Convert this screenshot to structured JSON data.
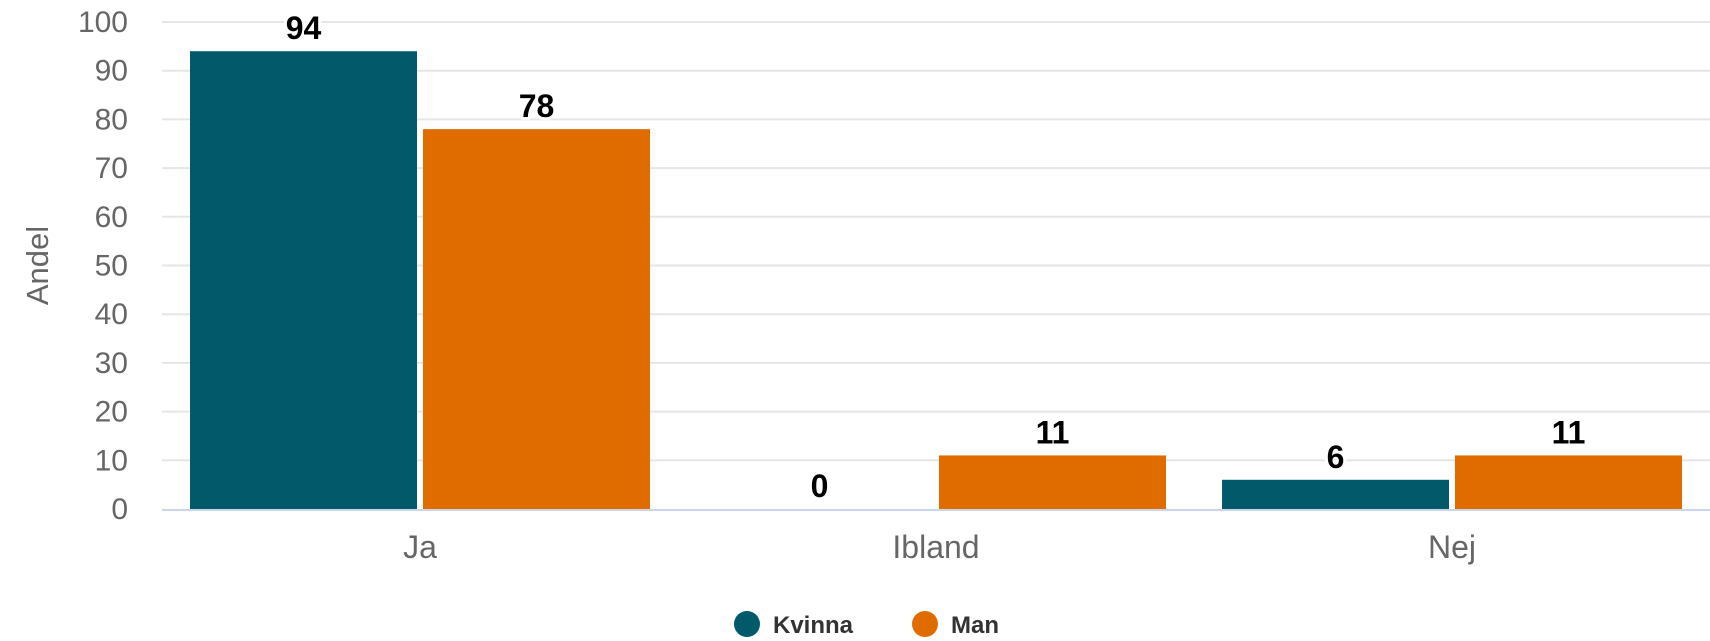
{
  "chart_data": {
    "type": "bar",
    "categories": [
      "Ja",
      "Ibland",
      "Nej"
    ],
    "series": [
      {
        "name": "Kvinna",
        "color": "#02596a",
        "values": [
          94,
          0,
          6
        ]
      },
      {
        "name": "Man",
        "color": "#e06c00",
        "values": [
          78,
          11,
          11
        ]
      }
    ],
    "ylabel": "Andel",
    "xlabel": "",
    "ylim": [
      0,
      100
    ],
    "yticks": [
      0,
      10,
      20,
      30,
      40,
      50,
      60,
      70,
      80,
      90,
      100
    ],
    "grid": true,
    "legend_position": "bottom-center",
    "data_labels": true
  }
}
